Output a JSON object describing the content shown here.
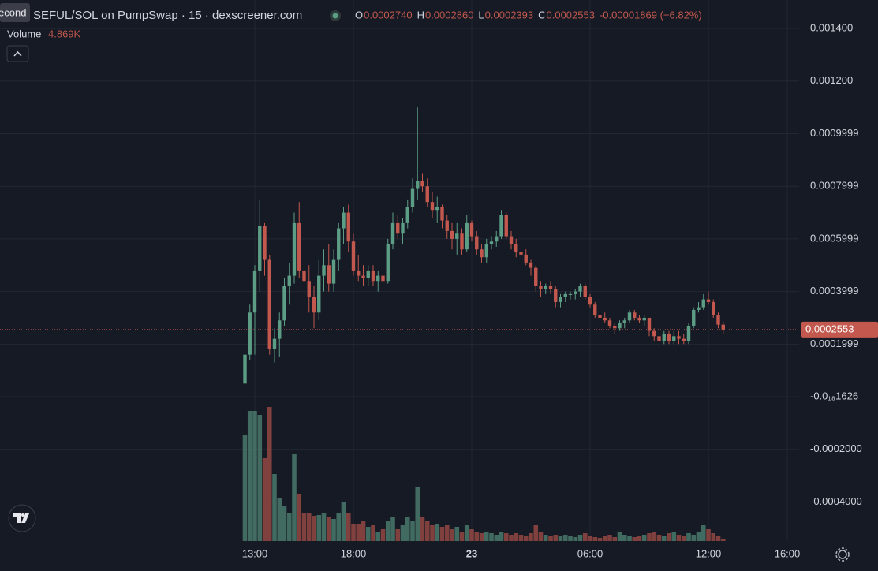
{
  "tooltip": "econd",
  "chart_data": {
    "type": "candlestick",
    "title": "SEFUL/SOL on PumpSwap · 15 · dexscreener.com",
    "ohlc_legend": [
      {
        "label": "O",
        "value": "0.0002740"
      },
      {
        "label": "H",
        "value": "0.0002860"
      },
      {
        "label": "L",
        "value": "0.0002393"
      },
      {
        "label": "C",
        "value": "0.0002553"
      }
    ],
    "change": "-0.00001869 (−6.82%)",
    "volume_label": "Volume",
    "volume_value": "4.869K",
    "last_price": "0.0002553",
    "colors": {
      "up": "#5c9d86",
      "down": "#c2584e",
      "text": "#d1d4dc"
    },
    "grid": true,
    "xlim": [
      0.08,
      40.6
    ],
    "xticks": [
      {
        "value": 13,
        "label": "13:00"
      },
      {
        "value": 18,
        "label": "18:00"
      },
      {
        "value": 24,
        "label": "23"
      },
      {
        "value": 30,
        "label": "06:00"
      },
      {
        "value": 36,
        "label": "12:00"
      },
      {
        "value": 40,
        "label": "16:00"
      }
    ],
    "ylim": [
      -0.0005487,
      0.0015082
    ],
    "yticks": [
      {
        "value": 0.0014,
        "label": "0.001400"
      },
      {
        "value": 0.0012,
        "label": "0.001200"
      },
      {
        "value": 0.0009999,
        "label": "0.0009999"
      },
      {
        "value": 0.0007999,
        "label": "0.0007999"
      },
      {
        "value": 0.0005999,
        "label": "0.0005999"
      },
      {
        "value": 0.0003999,
        "label": "0.0003999"
      },
      {
        "value": 0.0001999,
        "label": "0.0001999"
      },
      {
        "value": -1.626e-19,
        "label": "-0.0₁₈1626"
      },
      {
        "value": -0.0002,
        "label": "-0.0002000"
      },
      {
        "value": -0.0004,
        "label": "-0.0004000"
      }
    ],
    "x": [
      12.5,
      12.75,
      13,
      13.25,
      13.5,
      13.75,
      14,
      14.25,
      14.5,
      14.75,
      15,
      15.25,
      15.5,
      15.75,
      16,
      16.25,
      16.5,
      16.75,
      17,
      17.25,
      17.5,
      17.75,
      18,
      18.25,
      18.5,
      18.75,
      19,
      19.25,
      19.5,
      19.75,
      20,
      20.25,
      20.5,
      20.75,
      21,
      21.25,
      21.5,
      21.75,
      22,
      22.25,
      22.5,
      22.75,
      23,
      23.25,
      23.5,
      23.75,
      24,
      24.25,
      24.5,
      24.75,
      25,
      25.25,
      25.5,
      25.75,
      26,
      26.25,
      26.5,
      26.75,
      27,
      27.25,
      27.5,
      27.75,
      28,
      28.25,
      28.5,
      28.75,
      29,
      29.25,
      29.5,
      29.75,
      30,
      30.25,
      30.5,
      30.75,
      31,
      31.25,
      31.5,
      31.75,
      32,
      32.25,
      32.5,
      32.75,
      33,
      33.25,
      33.5,
      33.75,
      34,
      34.25,
      34.5,
      34.75,
      35,
      35.25,
      35.5,
      35.75,
      36,
      36.25,
      36.5,
      36.75
    ],
    "open": [
      5e-05,
      0.00016,
      0.00032,
      0.00048,
      0.00065,
      0.00052,
      0.00018,
      0.00022,
      0.00029,
      0.00042,
      0.00046,
      0.00066,
      0.00048,
      0.00044,
      0.00038,
      0.00032,
      0.00046,
      0.0005,
      0.00043,
      0.00052,
      0.00064,
      0.0007,
      0.00059,
      0.00048,
      0.00046,
      0.00045,
      0.00048,
      0.00044,
      0.00046,
      0.00044,
      0.00058,
      0.00066,
      0.00062,
      0.00066,
      0.00072,
      0.00079,
      0.00082,
      0.0008,
      0.00074,
      0.00071,
      0.00072,
      0.00067,
      0.00063,
      0.0006,
      0.00062,
      0.00056,
      0.00066,
      0.00061,
      0.00056,
      0.00053,
      0.00058,
      0.00059,
      0.00061,
      0.00069,
      0.00061,
      0.00058,
      0.00055,
      0.00054,
      0.00051,
      0.00049,
      0.00042,
      0.00041,
      0.00042,
      0.00041,
      0.00036,
      0.00038,
      0.00039,
      0.00039,
      0.0004,
      0.00042,
      0.00038,
      0.00035,
      0.00031,
      0.0003,
      0.00029,
      0.00027,
      0.00026,
      0.00028,
      0.00029,
      0.00032,
      0.0003,
      0.00029,
      0.0003,
      0.00025,
      0.00023,
      0.00021,
      0.00024,
      0.00021,
      0.00023,
      0.00022,
      0.00021,
      0.00027,
      0.00033,
      0.00034,
      0.00037,
      0.00036,
      0.00031,
      0.000274
    ],
    "high": [
      0.00022,
      0.00035,
      0.0005,
      0.00075,
      0.00066,
      0.00054,
      0.00026,
      0.00032,
      0.00045,
      0.00051,
      0.0007,
      0.00074,
      0.00056,
      0.0005,
      0.00042,
      0.00052,
      0.00056,
      0.00058,
      0.00056,
      0.00066,
      0.00072,
      0.00073,
      0.00062,
      0.00054,
      0.0005,
      0.0005,
      0.0005,
      0.00048,
      0.00054,
      0.0006,
      0.0007,
      0.00069,
      0.00068,
      0.00075,
      0.00083,
      0.0011,
      0.00085,
      0.00083,
      0.00078,
      0.00076,
      0.00073,
      0.00069,
      0.00066,
      0.00066,
      0.00064,
      0.00069,
      0.00067,
      0.00063,
      0.00058,
      0.0006,
      0.00061,
      0.00063,
      0.00071,
      0.0007,
      0.00063,
      0.0006,
      0.00058,
      0.00056,
      0.00052,
      0.0005,
      0.00044,
      0.00043,
      0.00044,
      0.00042,
      0.00039,
      0.0004,
      0.0004,
      0.00041,
      0.00043,
      0.00043,
      0.00039,
      0.00036,
      0.00032,
      0.00032,
      0.0003,
      0.00028,
      0.00029,
      0.0003,
      0.00033,
      0.00033,
      0.00031,
      0.00031,
      0.0003,
      0.00026,
      0.00025,
      0.00025,
      0.00025,
      0.00025,
      0.00025,
      0.00024,
      0.00028,
      0.00034,
      0.00036,
      0.00039,
      0.0004,
      0.00037,
      0.00032,
      0.000286
    ],
    "low": [
      4e-05,
      0.00014,
      0.00016,
      0.0004,
      0.00046,
      0.00016,
      0.00013,
      0.00015,
      0.00027,
      0.00035,
      0.00043,
      0.00045,
      0.00037,
      0.00032,
      0.00026,
      0.00029,
      0.0004,
      0.0004,
      0.0004,
      0.00048,
      0.00058,
      0.00055,
      0.00046,
      0.00044,
      0.00042,
      0.00042,
      0.00042,
      0.0004,
      0.00042,
      0.00043,
      0.00056,
      0.0006,
      0.00058,
      0.00064,
      0.0007,
      0.00075,
      0.00078,
      0.00072,
      0.00068,
      0.00066,
      0.00064,
      0.0006,
      0.00056,
      0.00054,
      0.00054,
      0.00055,
      0.00059,
      0.00054,
      0.00051,
      0.00051,
      0.00056,
      0.00057,
      0.0006,
      0.0006,
      0.00056,
      0.00053,
      0.00052,
      0.0005,
      0.00046,
      0.0004,
      0.00038,
      0.00039,
      0.00039,
      0.00034,
      0.00034,
      0.00036,
      0.00037,
      0.00037,
      0.00038,
      0.00037,
      0.00034,
      0.0003,
      0.00028,
      0.00028,
      0.00026,
      0.00024,
      0.00025,
      0.00026,
      0.00028,
      0.00029,
      0.00028,
      0.00027,
      0.00023,
      0.00021,
      0.0002,
      0.0002,
      0.0002,
      0.0002,
      0.0002,
      0.0002,
      0.0002,
      0.00026,
      0.00032,
      0.00033,
      0.00035,
      0.0003,
      0.00026,
      0.0002393
    ],
    "close": [
      0.00016,
      0.00032,
      0.00048,
      0.00065,
      0.00052,
      0.00018,
      0.00022,
      0.00029,
      0.00042,
      0.00046,
      0.00066,
      0.00048,
      0.00044,
      0.00038,
      0.00032,
      0.00046,
      0.0005,
      0.00043,
      0.00052,
      0.00064,
      0.0007,
      0.00059,
      0.00048,
      0.00046,
      0.00045,
      0.00048,
      0.00044,
      0.00046,
      0.00044,
      0.00058,
      0.00066,
      0.00062,
      0.00066,
      0.00072,
      0.00079,
      0.00082,
      0.0008,
      0.00074,
      0.00071,
      0.00072,
      0.00067,
      0.00063,
      0.0006,
      0.00062,
      0.00056,
      0.00066,
      0.00061,
      0.00056,
      0.00053,
      0.00058,
      0.00059,
      0.00061,
      0.00069,
      0.00061,
      0.00058,
      0.00055,
      0.00054,
      0.00051,
      0.00049,
      0.00042,
      0.00041,
      0.00042,
      0.00041,
      0.00036,
      0.00038,
      0.00039,
      0.00039,
      0.0004,
      0.00042,
      0.00038,
      0.00035,
      0.00031,
      0.0003,
      0.00029,
      0.00027,
      0.00026,
      0.00028,
      0.00029,
      0.00032,
      0.0003,
      0.00029,
      0.0003,
      0.00025,
      0.00023,
      0.00021,
      0.00024,
      0.00021,
      0.00023,
      0.00022,
      0.00021,
      0.00027,
      0.00033,
      0.00034,
      0.00037,
      0.00036,
      0.00031,
      0.000274,
      0.0002553
    ],
    "volume": [
      216000,
      264000,
      264000,
      256000,
      168000,
      272000,
      136000,
      88000,
      72000,
      56000,
      176000,
      96000,
      56000,
      56000,
      51200,
      52800,
      57600,
      48000,
      44800,
      56000,
      80000,
      57600,
      35200,
      35200,
      40000,
      28800,
      32000,
      19200,
      24000,
      40000,
      48000,
      24000,
      32000,
      48000,
      40000,
      108800,
      48000,
      40000,
      32000,
      35200,
      28800,
      32000,
      24000,
      28800,
      19200,
      32000,
      24000,
      19200,
      16000,
      19200,
      16000,
      12800,
      19200,
      16000,
      12800,
      16000,
      12800,
      9600,
      16000,
      32000,
      19200,
      12800,
      9600,
      12800,
      9600,
      12800,
      9600,
      8000,
      12800,
      16000,
      9600,
      8000,
      6400,
      9600,
      12800,
      8000,
      19200,
      12800,
      9600,
      8000,
      9600,
      12800,
      16000,
      19200,
      12800,
      9600,
      16000,
      19200,
      12800,
      9600,
      16000,
      12800,
      19200,
      32000,
      24000,
      16000,
      9600,
      4869
    ]
  }
}
